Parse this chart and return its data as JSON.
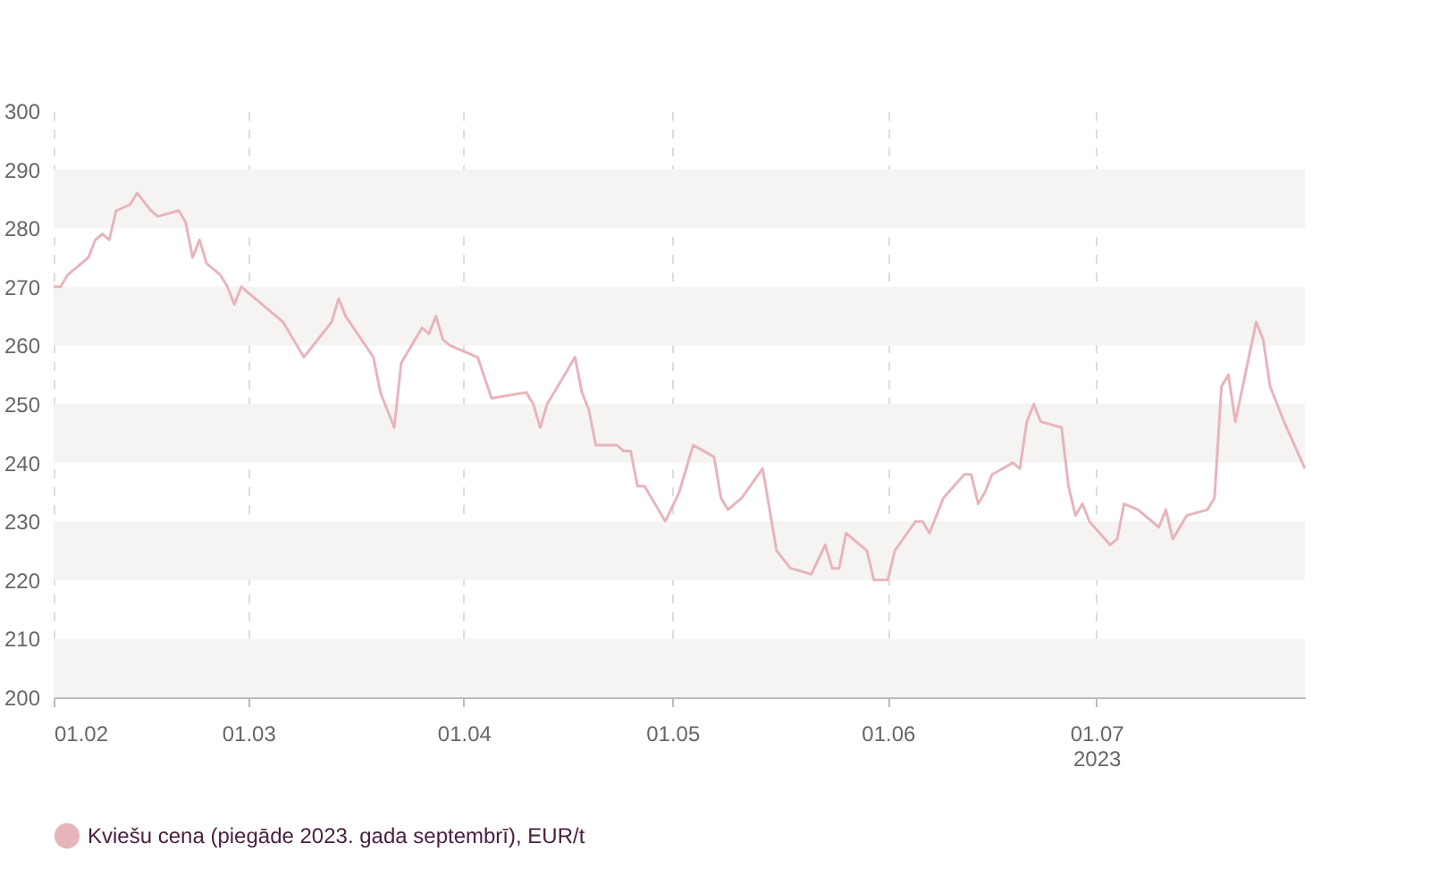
{
  "chart_data": {
    "type": "line",
    "x": [
      "2023-02-01",
      "2023-02-02",
      "2023-02-03",
      "2023-02-06",
      "2023-02-07",
      "2023-02-08",
      "2023-02-09",
      "2023-02-10",
      "2023-02-12",
      "2023-02-13",
      "2023-02-15",
      "2023-02-16",
      "2023-02-19",
      "2023-02-20",
      "2023-02-21",
      "2023-02-22",
      "2023-02-23",
      "2023-02-25",
      "2023-02-26",
      "2023-02-27",
      "2023-02-28",
      "2023-03-01",
      "2023-03-04",
      "2023-03-06",
      "2023-03-07",
      "2023-03-09",
      "2023-03-13",
      "2023-03-14",
      "2023-03-15",
      "2023-03-19",
      "2023-03-20",
      "2023-03-21",
      "2023-03-22",
      "2023-03-23",
      "2023-03-26",
      "2023-03-27",
      "2023-03-28",
      "2023-03-29",
      "2023-03-30",
      "2023-04-03",
      "2023-04-05",
      "2023-04-10",
      "2023-04-11",
      "2023-04-12",
      "2023-04-13",
      "2023-04-16",
      "2023-04-17",
      "2023-04-18",
      "2023-04-19",
      "2023-04-20",
      "2023-04-23",
      "2023-04-24",
      "2023-04-25",
      "2023-04-26",
      "2023-04-27",
      "2023-04-30",
      "2023-05-02",
      "2023-05-04",
      "2023-05-07",
      "2023-05-08",
      "2023-05-09",
      "2023-05-11",
      "2023-05-14",
      "2023-05-16",
      "2023-05-18",
      "2023-05-21",
      "2023-05-23",
      "2023-05-24",
      "2023-05-25",
      "2023-05-26",
      "2023-05-29",
      "2023-05-30",
      "2023-06-01",
      "2023-06-02",
      "2023-06-05",
      "2023-06-06",
      "2023-06-07",
      "2023-06-09",
      "2023-06-12",
      "2023-06-13",
      "2023-06-14",
      "2023-06-15",
      "2023-06-16",
      "2023-06-19",
      "2023-06-20",
      "2023-06-21",
      "2023-06-22",
      "2023-06-23",
      "2023-06-26",
      "2023-06-27",
      "2023-06-28",
      "2023-06-29",
      "2023-06-30",
      "2023-07-03",
      "2023-07-04",
      "2023-07-05",
      "2023-07-07",
      "2023-07-10",
      "2023-07-11",
      "2023-07-12",
      "2023-07-14",
      "2023-07-17",
      "2023-07-18",
      "2023-07-19",
      "2023-07-20",
      "2023-07-21",
      "2023-07-24",
      "2023-07-25",
      "2023-07-26",
      "2023-07-28",
      "2023-07-31"
    ],
    "series": [
      {
        "name": "Kviešu cena (piegāde 2023. gada septembrī), EUR/t",
        "color": "#e8b4bc",
        "values": [
          270,
          270,
          272,
          275,
          278,
          279,
          278,
          283,
          284,
          286,
          283,
          282,
          283,
          281,
          275,
          278,
          274,
          272,
          270,
          267,
          270,
          269,
          266,
          264,
          262,
          258,
          264,
          268,
          265,
          258,
          252,
          249,
          246,
          257,
          263,
          262,
          265,
          261,
          260,
          258,
          251,
          252,
          250,
          246,
          250,
          256,
          258,
          252,
          249,
          243,
          243,
          242,
          242,
          236,
          236,
          230,
          235,
          243,
          241,
          234,
          232,
          234,
          239,
          225,
          222,
          221,
          226,
          222,
          222,
          228,
          225,
          220,
          220,
          225,
          230,
          230,
          228,
          234,
          238,
          238,
          233,
          235,
          238,
          240,
          239,
          247,
          250,
          247,
          246,
          236,
          231,
          233,
          230,
          226,
          227,
          233,
          232,
          229,
          232,
          227,
          231,
          232,
          234,
          253,
          255,
          247,
          264,
          261,
          253,
          247,
          239
        ]
      }
    ],
    "xlim": [
      "2023-02-01",
      "2023-07-31"
    ],
    "xticks": [
      {
        "value": "2023-02-01",
        "label": "01.02"
      },
      {
        "value": "2023-03-01",
        "label": "01.03"
      },
      {
        "value": "2023-04-01",
        "label": "01.04"
      },
      {
        "value": "2023-05-01",
        "label": "01.05"
      },
      {
        "value": "2023-06-01",
        "label": "01.06"
      },
      {
        "value": "2023-07-01",
        "label": "01.07\n2023"
      }
    ],
    "ylim": [
      200,
      300
    ],
    "yticks": [
      200,
      210,
      220,
      230,
      240,
      250,
      260,
      270,
      280,
      290,
      300
    ],
    "bands": [
      {
        "axis": "y",
        "from": 200,
        "to": 210,
        "color": "#f5f4f2"
      },
      {
        "axis": "y",
        "from": 220,
        "to": 230,
        "color": "#f5f4f2"
      },
      {
        "axis": "y",
        "from": 240,
        "to": 250,
        "color": "#f5f4f2"
      },
      {
        "axis": "y",
        "from": 260,
        "to": 270,
        "color": "#f5f4f2"
      },
      {
        "axis": "y",
        "from": 280,
        "to": 290,
        "color": "#f5f4f2"
      }
    ],
    "grid": "x",
    "legend": "bottom left",
    "marker": "none",
    "line_style": "solid"
  }
}
